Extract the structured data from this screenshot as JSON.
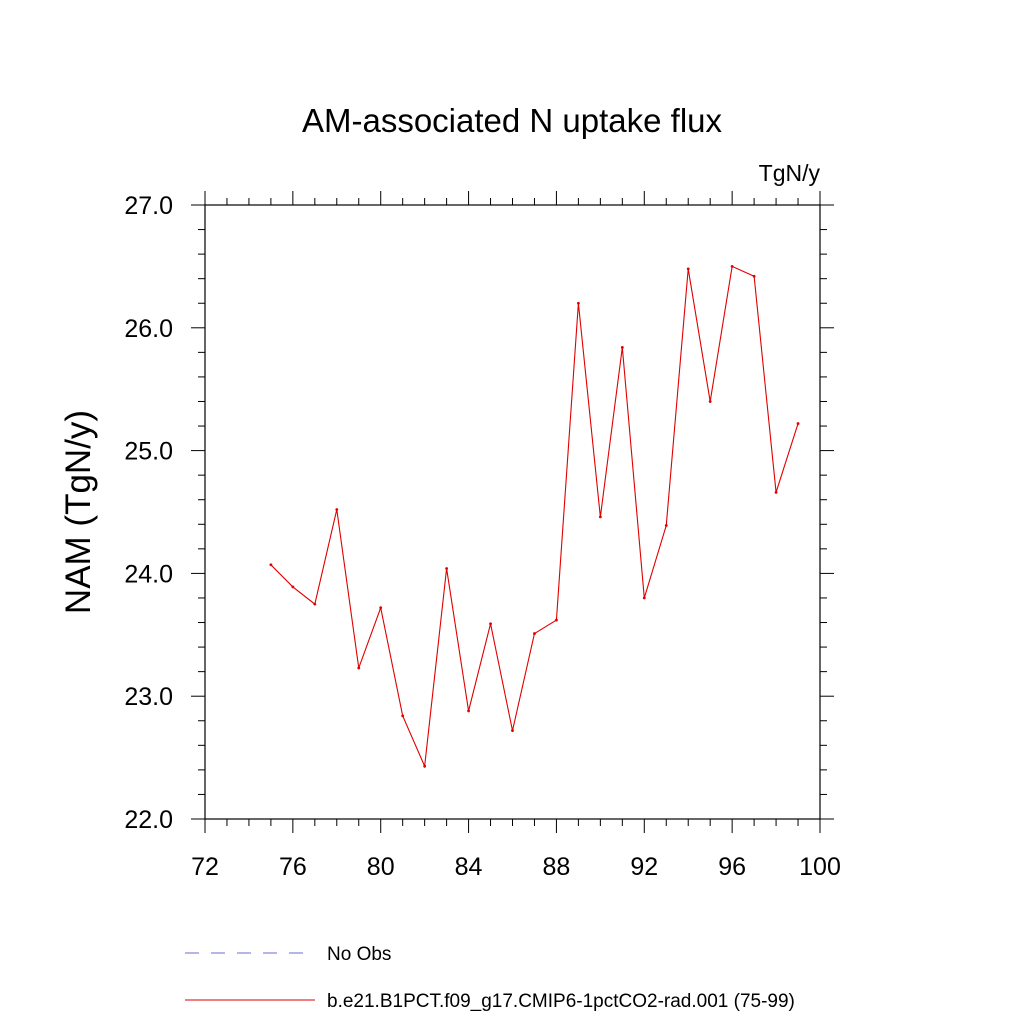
{
  "chart_data": {
    "type": "line",
    "title": "AM-associated N uptake flux",
    "units_label": "TgN/y",
    "xlabel": "",
    "ylabel": "NAM  (TgN/y)",
    "xlim": [
      72,
      100
    ],
    "ylim": [
      22.0,
      27.0
    ],
    "x_ticks": [
      "72",
      "76",
      "80",
      "84",
      "88",
      "92",
      "96",
      "100"
    ],
    "y_ticks": [
      "22.0",
      "23.0",
      "24.0",
      "25.0",
      "26.0",
      "27.0"
    ],
    "grid": false,
    "legend_position": "bottom",
    "series": [
      {
        "name": "No Obs",
        "color": "#6b6bd6",
        "style": "dashed",
        "x": [],
        "values": []
      },
      {
        "name": "b.e21.B1PCT.f09_g17.CMIP6-1pctCO2-rad.001 (75-99)",
        "color": "#e00000",
        "style": "solid",
        "x": [
          75,
          76,
          77,
          78,
          79,
          80,
          81,
          82,
          83,
          84,
          85,
          86,
          87,
          88,
          89,
          90,
          91,
          92,
          93,
          94,
          95,
          96,
          97,
          98,
          99
        ],
        "values": [
          24.07,
          23.89,
          23.75,
          24.52,
          23.23,
          23.72,
          22.84,
          22.43,
          24.04,
          22.88,
          23.59,
          22.72,
          23.51,
          23.62,
          26.2,
          24.46,
          25.84,
          23.8,
          24.39,
          26.48,
          25.4,
          26.5,
          26.42,
          24.66,
          25.22
        ]
      }
    ]
  }
}
